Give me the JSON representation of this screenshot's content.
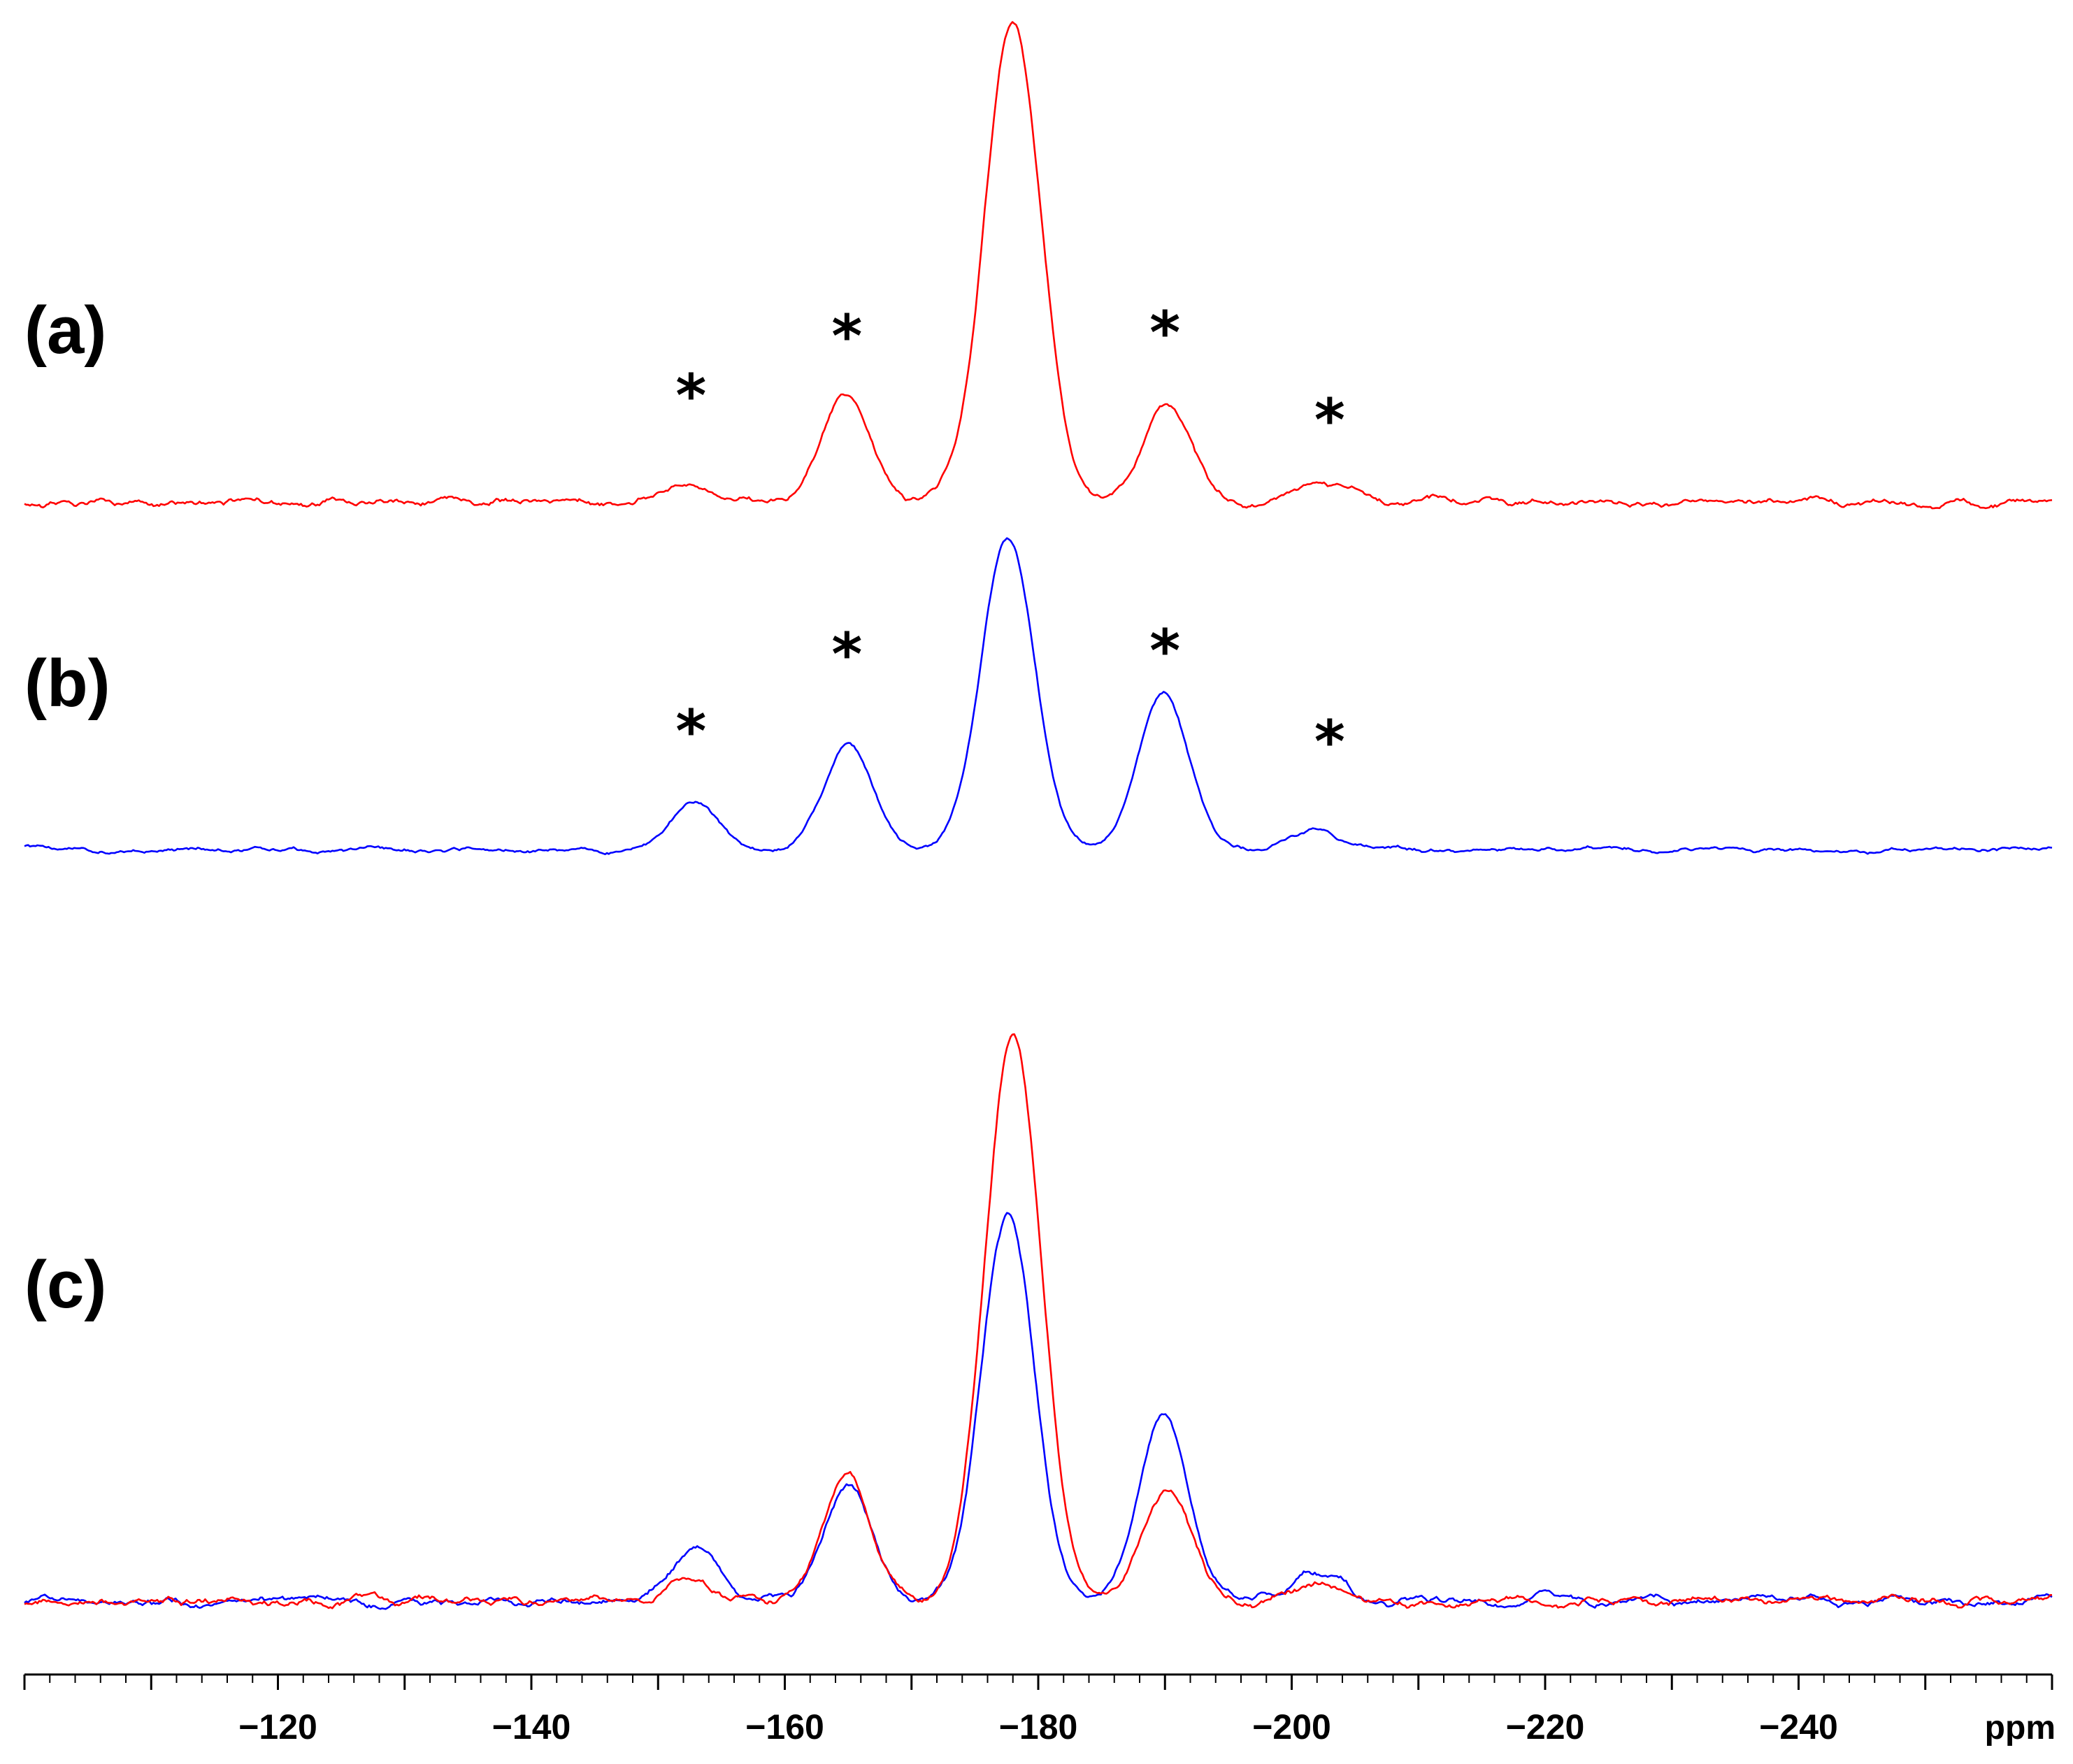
{
  "chart_data": {
    "type": "line",
    "xlabel": "ppm",
    "xlim": [
      -100,
      -260
    ],
    "x_reversed": true,
    "x_ticks": [
      -120,
      -140,
      -160,
      -180,
      -200,
      -220,
      -240
    ],
    "x_tick_labels": [
      "−120",
      "−140",
      "−160",
      "−180",
      "−200",
      "−220",
      "−240"
    ],
    "x_minor_step": 2,
    "grid": false,
    "legend": "none",
    "colors": {
      "red": "#ff0000",
      "blue": "#0000ff",
      "axis": "#000000"
    },
    "noise_seed": 7,
    "panels": [
      {
        "label": "(a)",
        "series": [
          {
            "color": "#ff0000",
            "noise": 0.8,
            "peaks": [
              {
                "center": -178.0,
                "height": 100,
                "width": 2.2
              },
              {
                "center": -164.9,
                "height": 22,
                "width": 1.9
              },
              {
                "center": -190.2,
                "height": 20,
                "width": 1.9
              },
              {
                "center": -152.6,
                "height": 4,
                "width": 1.7
              },
              {
                "center": -202.5,
                "height": 4,
                "width": 2.0
              }
            ]
          }
        ],
        "annotations": [
          {
            "text": "*",
            "x": -152.6
          },
          {
            "text": "*",
            "x": -164.9
          },
          {
            "text": "*",
            "x": -190.0
          },
          {
            "text": "*",
            "x": -203.0
          }
        ]
      },
      {
        "label": "(b)",
        "series": [
          {
            "color": "#0000ff",
            "noise": 0.8,
            "peaks": [
              {
                "center": -177.6,
                "height": 100,
                "width": 2.1
              },
              {
                "center": -165.0,
                "height": 33,
                "width": 1.9
              },
              {
                "center": -189.9,
                "height": 49,
                "width": 2.0
              },
              {
                "center": -152.9,
                "height": 15,
                "width": 1.8
              },
              {
                "center": -201.8,
                "height": 6,
                "width": 2.0
              }
            ]
          }
        ],
        "annotations": [
          {
            "text": "*",
            "x": -152.6
          },
          {
            "text": "*",
            "x": -164.9
          },
          {
            "text": "*",
            "x": -190.0
          },
          {
            "text": "*",
            "x": -203.0
          }
        ]
      },
      {
        "label": "(c)",
        "series": [
          {
            "color": "#0000ff",
            "noise": 0.8,
            "peaks": [
              {
                "center": -177.6,
                "height": 68,
                "width": 2.1
              },
              {
                "center": -165.0,
                "height": 21,
                "width": 1.9
              },
              {
                "center": -189.9,
                "height": 33,
                "width": 2.0
              },
              {
                "center": -152.9,
                "height": 10,
                "width": 1.8
              },
              {
                "center": -201.8,
                "height": 5,
                "width": 2.0
              }
            ]
          },
          {
            "color": "#ff0000",
            "noise": 0.8,
            "peaks": [
              {
                "center": -178.0,
                "height": 100,
                "width": 2.2
              },
              {
                "center": -164.9,
                "height": 22,
                "width": 1.9
              },
              {
                "center": -190.2,
                "height": 20,
                "width": 1.9
              },
              {
                "center": -152.6,
                "height": 4,
                "width": 1.7
              },
              {
                "center": -202.5,
                "height": 4,
                "width": 2.0
              }
            ]
          }
        ],
        "annotations": []
      }
    ]
  }
}
